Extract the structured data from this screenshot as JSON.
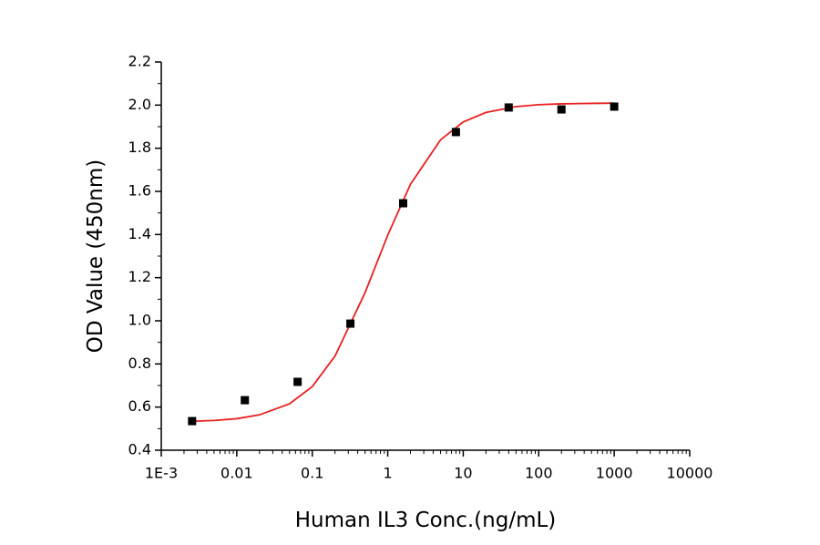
{
  "chart_data": {
    "type": "scatter",
    "xlabel": "Human IL3 Conc.(ng/mL)",
    "ylabel": "OD Value (450nm)",
    "xscale": "log",
    "xlim": [
      0.001,
      10000
    ],
    "xticks": [
      {
        "value": 0.001,
        "label": "1E-3"
      },
      0.01,
      0.1,
      1,
      10,
      100,
      1000,
      10000
    ],
    "ylim": [
      0.4,
      2.2
    ],
    "yticks": [
      0.4,
      0.6,
      0.8,
      {
        "value": 1.0,
        "label": "1.0"
      },
      1.2,
      1.4,
      1.6,
      1.8,
      {
        "value": 2.0,
        "label": "2.0"
      },
      2.2
    ],
    "series": [
      {
        "style": "markers",
        "color": "#000000",
        "x": [
          0.00256,
          0.0128,
          0.064,
          0.32,
          1.6,
          8,
          40,
          200,
          1000
        ],
        "values": [
          0.535,
          0.632,
          0.717,
          0.987,
          1.545,
          1.875,
          1.989,
          1.98,
          1.993
        ]
      },
      {
        "style": "line",
        "color": "#e8201f",
        "x": [
          0.0025,
          0.005,
          0.01,
          0.02,
          0.05,
          0.1,
          0.2,
          0.5,
          1,
          2,
          5,
          10,
          20,
          50,
          100,
          200,
          500,
          1000
        ],
        "values": [
          0.534,
          0.538,
          0.546,
          0.564,
          0.615,
          0.695,
          0.836,
          1.13,
          1.397,
          1.633,
          1.839,
          1.922,
          1.966,
          1.993,
          2.002,
          2.006,
          2.008,
          2.009
        ]
      }
    ]
  }
}
